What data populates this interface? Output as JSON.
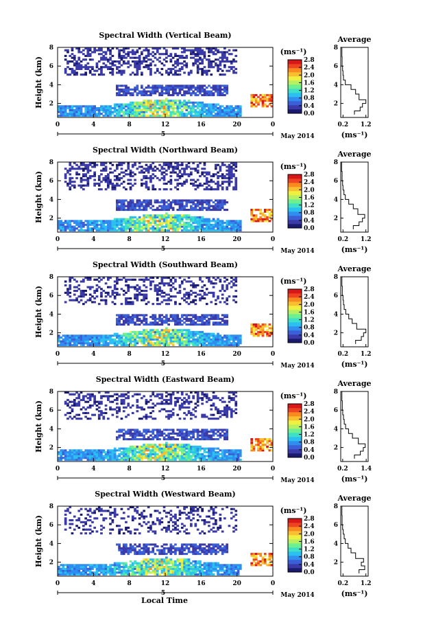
{
  "figure": {
    "xlabel": "Local Time",
    "date_label": "May 2014",
    "day_label": "5",
    "colorbar_unit": "(ms⁻¹)",
    "avg_title": "Average",
    "avg_xlabel": "(ms⁻¹)"
  },
  "colorscale": {
    "ticks": [
      "2.8",
      "2.4",
      "2.0",
      "1.6",
      "1.2",
      "0.8",
      "0.4",
      "0.0"
    ],
    "colors": [
      "#1a1a6e",
      "#3a3aa8",
      "#3b5fd6",
      "#2f8ef0",
      "#2cc0f0",
      "#3ee0c8",
      "#6ef090",
      "#b8f060",
      "#f0f040",
      "#f8c030",
      "#f88a20",
      "#ee4422",
      "#d81818"
    ]
  },
  "chart_data": [
    {
      "type": "heatmap",
      "title": "Spectral Width (Vertical Beam)",
      "xlabel": "Local Time",
      "ylabel": "Height (km)",
      "x_ticks": [
        "0",
        "4",
        "8",
        "12",
        "16",
        "20",
        "0"
      ],
      "y_ticks": [
        "2",
        "4",
        "6",
        "8"
      ],
      "xlim": [
        0,
        24
      ],
      "ylim": [
        0.5,
        8
      ],
      "unit": "ms⁻¹",
      "colorbar_range": [
        0.0,
        2.8
      ],
      "profile": {
        "title": "Average",
        "xlabel": "(ms⁻¹)",
        "x_ticks": [
          "0.2",
          "1.2"
        ],
        "xlim": [
          0.1,
          1.3
        ],
        "heights": [
          0.8,
          1.2,
          1.6,
          2.0,
          2.4,
          3.0,
          3.5,
          4.0,
          4.5,
          5.0,
          5.5,
          6.0,
          7.0,
          8.0
        ],
        "values": [
          0.7,
          0.95,
          1.05,
          1.2,
          0.9,
          0.75,
          0.55,
          0.3,
          0.22,
          0.2,
          0.18,
          0.16,
          0.15,
          0.14
        ]
      }
    },
    {
      "type": "heatmap",
      "title": "Spectral Width (Northward Beam)",
      "xlabel": "Local Time",
      "ylabel": "Height (km)",
      "x_ticks": [
        "0",
        "4",
        "8",
        "12",
        "16",
        "20",
        "0"
      ],
      "y_ticks": [
        "2",
        "4",
        "6",
        "8"
      ],
      "xlim": [
        0,
        24
      ],
      "ylim": [
        0.5,
        8
      ],
      "unit": "ms⁻¹",
      "colorbar_range": [
        0.0,
        2.8
      ],
      "profile": {
        "title": "Average",
        "xlabel": "(ms⁻¹)",
        "x_ticks": [
          "0.2",
          "1.2"
        ],
        "xlim": [
          0.1,
          1.3
        ],
        "heights": [
          0.8,
          1.2,
          1.6,
          2.0,
          2.4,
          3.0,
          3.5,
          4.0,
          4.5,
          5.0,
          5.5,
          6.0,
          7.0,
          8.0
        ],
        "values": [
          0.65,
          0.9,
          1.05,
          1.15,
          0.85,
          0.65,
          0.45,
          0.3,
          0.24,
          0.2,
          0.18,
          0.16,
          0.14,
          0.13
        ]
      }
    },
    {
      "type": "heatmap",
      "title": "Spectral Width (Southward Beam)",
      "xlabel": "Local Time",
      "ylabel": "Height (km)",
      "x_ticks": [
        "0",
        "4",
        "8",
        "12",
        "16",
        "20",
        "0"
      ],
      "y_ticks": [
        "2",
        "4",
        "6",
        "8"
      ],
      "xlim": [
        0,
        24
      ],
      "ylim": [
        0.5,
        8
      ],
      "unit": "ms⁻¹",
      "colorbar_range": [
        0.0,
        2.8
      ],
      "profile": {
        "title": "Average",
        "xlabel": "(ms⁻¹)",
        "x_ticks": [
          "0.2",
          "1.2"
        ],
        "xlim": [
          0.1,
          1.3
        ],
        "heights": [
          0.8,
          1.2,
          1.6,
          2.0,
          2.4,
          3.0,
          3.5,
          4.0,
          4.5,
          5.0,
          5.5,
          6.0,
          7.0,
          8.0
        ],
        "values": [
          0.75,
          1.0,
          1.1,
          1.2,
          0.8,
          0.6,
          0.45,
          0.32,
          0.25,
          0.22,
          0.2,
          0.17,
          0.15,
          0.14
        ]
      }
    },
    {
      "type": "heatmap",
      "title": "Spectral Width (Eastward Beam)",
      "xlabel": "Local Time",
      "ylabel": "Height (km)",
      "x_ticks": [
        "0",
        "4",
        "8",
        "12",
        "16",
        "20",
        "0"
      ],
      "y_ticks": [
        "2",
        "4",
        "6",
        "8"
      ],
      "xlim": [
        0,
        24
      ],
      "ylim": [
        0.5,
        8
      ],
      "unit": "ms⁻¹",
      "colorbar_range": [
        0.0,
        2.8
      ],
      "profile": {
        "title": "Average",
        "xlabel": "(ms⁻¹)",
        "x_ticks": [
          "0.2",
          "1.4"
        ],
        "xlim": [
          0.1,
          1.5
        ],
        "heights": [
          0.8,
          1.2,
          1.6,
          2.0,
          2.4,
          3.0,
          3.5,
          4.0,
          4.5,
          5.0,
          5.5,
          6.0,
          7.0,
          8.0
        ],
        "values": [
          0.8,
          1.1,
          1.25,
          1.35,
          1.0,
          0.7,
          0.5,
          0.35,
          0.28,
          0.24,
          0.2,
          0.18,
          0.16,
          0.15
        ]
      }
    },
    {
      "type": "heatmap",
      "title": "Spectral Width (Westward Beam)",
      "xlabel": "Local Time",
      "ylabel": "Height (km)",
      "x_ticks": [
        "0",
        "4",
        "8",
        "12",
        "16",
        "20",
        "0"
      ],
      "y_ticks": [
        "2",
        "4",
        "6",
        "8"
      ],
      "xlim": [
        0,
        24
      ],
      "ylim": [
        0.5,
        8
      ],
      "unit": "ms⁻¹",
      "colorbar_range": [
        0.0,
        2.8
      ],
      "profile": {
        "title": "Average",
        "xlabel": "(ms⁻¹)",
        "x_ticks": [
          "0.2",
          "1.2"
        ],
        "xlim": [
          0.1,
          1.3
        ],
        "heights": [
          0.8,
          1.2,
          1.6,
          2.0,
          2.4,
          3.0,
          3.5,
          4.0,
          4.5,
          5.0,
          5.5,
          6.0,
          7.0,
          8.0
        ],
        "values": [
          0.9,
          1.15,
          1.0,
          1.1,
          0.75,
          0.55,
          0.42,
          0.3,
          0.25,
          0.21,
          0.18,
          0.16,
          0.15,
          0.14
        ]
      }
    }
  ]
}
